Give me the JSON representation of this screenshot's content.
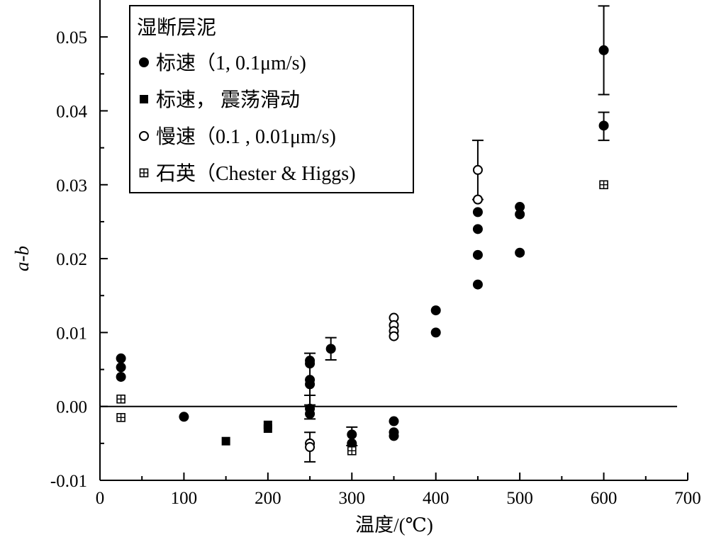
{
  "chart_data": {
    "type": "scatter",
    "title": "",
    "xlabel": "温度/(℃)",
    "ylabel": "a-b",
    "xlim": [
      0,
      700
    ],
    "ylim": [
      -0.01,
      0.055
    ],
    "x_ticks": [
      0,
      100,
      200,
      300,
      400,
      500,
      600,
      700
    ],
    "x_tick_labels": [
      "0",
      "100",
      "200",
      "300",
      "400",
      "500",
      "600",
      "700"
    ],
    "y_ticks": [
      -0.01,
      0.0,
      0.01,
      0.02,
      0.03,
      0.04,
      0.05
    ],
    "y_tick_labels": [
      "-0.01",
      "0.00",
      "0.01",
      "0.02",
      "0.03",
      "0.04",
      "0.05"
    ],
    "zero_line": true,
    "grid": false,
    "legend": {
      "title": "湿断层泥",
      "position": "top-left",
      "entries": [
        "标速（1, 0.1μm/s)",
        "标速， 震荡滑动",
        "慢速（0.1 , 0.01μm/s)",
        "石英（Chester & Higgs)"
      ]
    },
    "series": [
      {
        "name": "标速（1, 0.1μm/s)",
        "marker": "filled-circle",
        "points": [
          {
            "x": 25,
            "y": 0.0065
          },
          {
            "x": 25,
            "y": 0.0053
          },
          {
            "x": 25,
            "y": 0.004
          },
          {
            "x": 100,
            "y": -0.0014
          },
          {
            "x": 250,
            "y": 0.0062
          },
          {
            "x": 250,
            "y": 0.0058
          },
          {
            "x": 250,
            "y": 0.0036
          },
          {
            "x": 250,
            "y": 0.003
          },
          {
            "x": 250,
            "y": -0.0003
          },
          {
            "x": 250,
            "y": -0.001
          },
          {
            "x": 275,
            "y": 0.0078
          },
          {
            "x": 300,
            "y": -0.0038
          },
          {
            "x": 300,
            "y": -0.005
          },
          {
            "x": 350,
            "y": -0.002
          },
          {
            "x": 350,
            "y": -0.0035
          },
          {
            "x": 350,
            "y": -0.004
          },
          {
            "x": 400,
            "y": 0.013
          },
          {
            "x": 400,
            "y": 0.01
          },
          {
            "x": 450,
            "y": 0.0263
          },
          {
            "x": 450,
            "y": 0.024
          },
          {
            "x": 450,
            "y": 0.0205
          },
          {
            "x": 450,
            "y": 0.0165
          },
          {
            "x": 500,
            "y": 0.027
          },
          {
            "x": 500,
            "y": 0.026
          },
          {
            "x": 500,
            "y": 0.0208
          },
          {
            "x": 600,
            "y": 0.0482
          },
          {
            "x": 600,
            "y": 0.038
          }
        ]
      },
      {
        "name": "标速， 震荡滑动",
        "marker": "filled-square",
        "points": [
          {
            "x": 150,
            "y": -0.0047
          },
          {
            "x": 200,
            "y": -0.0025
          },
          {
            "x": 200,
            "y": -0.003
          }
        ]
      },
      {
        "name": "慢速（0.1 , 0.01μm/s)",
        "marker": "open-circle",
        "points": [
          {
            "x": 250,
            "y": -0.005
          },
          {
            "x": 250,
            "y": -0.0055
          },
          {
            "x": 350,
            "y": 0.012
          },
          {
            "x": 350,
            "y": 0.011
          },
          {
            "x": 350,
            "y": 0.0102
          },
          {
            "x": 350,
            "y": 0.0095
          },
          {
            "x": 450,
            "y": 0.032
          },
          {
            "x": 450,
            "y": 0.028
          }
        ]
      },
      {
        "name": "石英（Chester & Higgs)",
        "marker": "boxed-plus",
        "points": [
          {
            "x": 25,
            "y": 0.001
          },
          {
            "x": 25,
            "y": -0.0015
          },
          {
            "x": 300,
            "y": -0.006
          },
          {
            "x": 600,
            "y": 0.03
          }
        ]
      }
    ],
    "error_bars": [
      {
        "x": 250,
        "y_low": 0.0002,
        "y_high": 0.0072
      },
      {
        "x": 250,
        "y_low": -0.0017,
        "y_high": 0.0015
      },
      {
        "x": 250,
        "y_low": -0.0075,
        "y_high": -0.0035
      },
      {
        "x": 275,
        "y_low": 0.0063,
        "y_high": 0.0093
      },
      {
        "x": 300,
        "y_low": -0.0053,
        "y_high": -0.0028
      },
      {
        "x": 450,
        "y_low": 0.028,
        "y_high": 0.036
      },
      {
        "x": 600,
        "y_low": 0.0422,
        "y_high": 0.0542
      },
      {
        "x": 600,
        "y_low": 0.036,
        "y_high": 0.0398
      }
    ]
  }
}
